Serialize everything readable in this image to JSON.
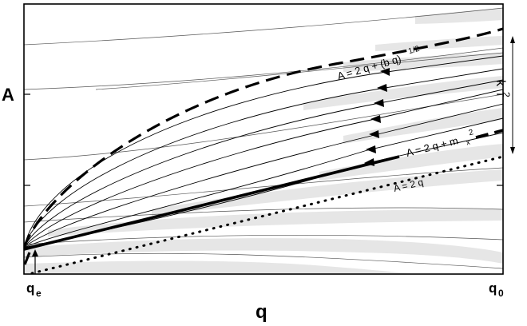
{
  "axes": {
    "y_label": "A",
    "x_label": "q",
    "x_tick_start_base": "q",
    "x_tick_start_sub": "e",
    "x_tick_end_base": "q",
    "x_tick_end_sub": "0"
  },
  "labels": {
    "upper_curve_base": "A = 2 q + (b q)",
    "upper_curve_exp": "1/2",
    "mid_curve_base": "A = 2 q + m",
    "mid_curve_sub": "x",
    "mid_curve_exp": "2",
    "lower_curve": "A = 2 q",
    "k_base": "k",
    "k_exp": "2"
  },
  "colors": {
    "ink": "#000000",
    "band": "#e6e6e6",
    "frame": "#000000"
  }
}
